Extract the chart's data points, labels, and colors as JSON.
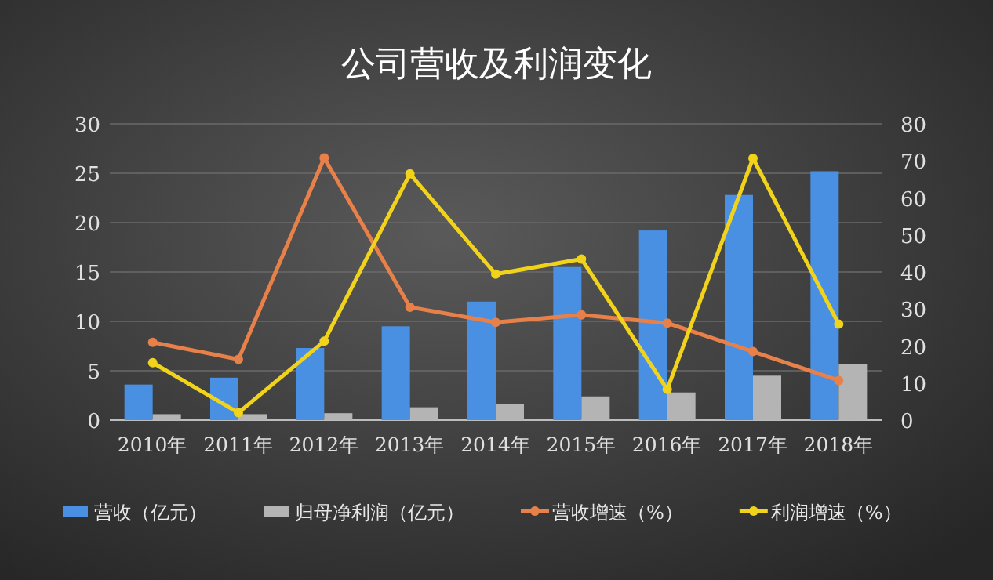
{
  "chart_data": {
    "type": "bar",
    "title": "公司营收及利润变化",
    "categories": [
      "2010年",
      "2011年",
      "2012年",
      "2013年",
      "2014年",
      "2015年",
      "2016年",
      "2017年",
      "2018年"
    ],
    "series": [
      {
        "name": "营收（亿元）",
        "color": "#4a90e2",
        "values": [
          3.6,
          4.3,
          7.3,
          9.5,
          12.0,
          15.5,
          19.2,
          22.8,
          25.2
        ]
      },
      {
        "name": "归母净利润（亿元）",
        "color": "#b4b4b4",
        "values": [
          0.6,
          0.6,
          0.7,
          1.3,
          1.6,
          2.4,
          2.8,
          4.5,
          5.7
        ]
      },
      {
        "name": "营收增速（%）",
        "type": "line",
        "axis": "y2",
        "color": "#e8804a",
        "values": [
          21.0,
          16.4,
          70.8,
          30.5,
          26.4,
          28.4,
          26.2,
          18.5,
          10.7
        ]
      },
      {
        "name": "利润增速（%）",
        "type": "line",
        "axis": "y2",
        "color": "#f2d31b",
        "values": [
          15.5,
          2.0,
          21.3,
          66.5,
          39.4,
          43.5,
          8.3,
          70.7,
          25.9
        ]
      }
    ],
    "ylim": [
      0,
      30
    ],
    "yticks": [
      0,
      5,
      10,
      15,
      20,
      25,
      30
    ],
    "y2lim": [
      0,
      80
    ],
    "y2ticks": [
      0,
      10,
      20,
      30,
      40,
      50,
      60,
      70,
      80
    ],
    "marker": "circle",
    "grid": "y",
    "legend": "bottom"
  }
}
